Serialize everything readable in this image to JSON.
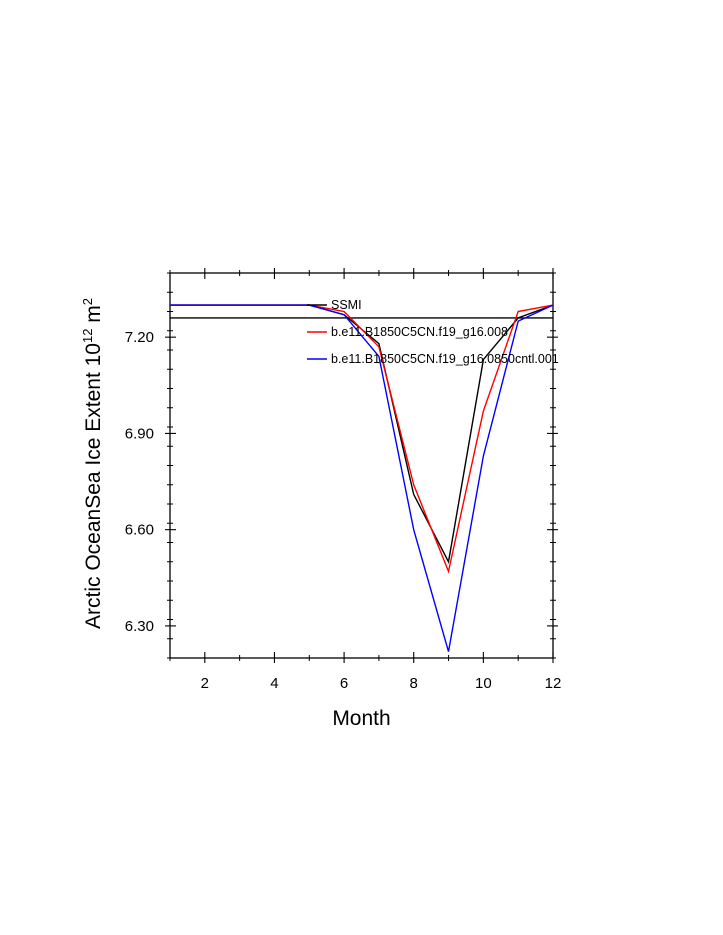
{
  "chart_data": {
    "type": "line",
    "xlabel": "Month",
    "ylabel": {
      "main": "Arctic OceanSea Ice Extent 10",
      "exponent": "12",
      "unit": "m",
      "unit_exponent": "2"
    },
    "xlim": [
      1,
      12
    ],
    "ylim": [
      6.2,
      7.4
    ],
    "x_ticks": [
      2,
      4,
      6,
      8,
      10,
      12
    ],
    "x_tick_labels": [
      "2",
      "4",
      "6",
      "8",
      "10",
      "12"
    ],
    "y_ticks": [
      6.3,
      6.6,
      6.9,
      7.2
    ],
    "y_tick_labels": [
      "6.30",
      "6.60",
      "6.90",
      "7.20"
    ],
    "grid": false,
    "legend_position": "top-right inside",
    "x": [
      1,
      2,
      3,
      4,
      5,
      6,
      7,
      8,
      9,
      10,
      11,
      12
    ],
    "series": [
      {
        "name": "SSMI",
        "color": "#000000",
        "values": [
          7.3,
          7.3,
          7.3,
          7.3,
          7.3,
          7.27,
          7.18,
          6.71,
          6.5,
          7.13,
          7.26,
          7.3
        ]
      },
      {
        "name": "b.e11.B1850C5CN.f19_g16.008",
        "color": "#ff0000",
        "values": [
          7.3,
          7.3,
          7.3,
          7.3,
          7.3,
          7.28,
          7.17,
          6.74,
          6.47,
          6.97,
          7.28,
          7.3
        ]
      },
      {
        "name": "b.e11.B1850C5CN.f19_g16.0850cntl.001",
        "color": "#0000ff",
        "values": [
          7.3,
          7.3,
          7.3,
          7.3,
          7.3,
          7.27,
          7.14,
          6.6,
          6.22,
          6.83,
          7.25,
          7.3
        ]
      }
    ],
    "reference_line": {
      "value": 7.26,
      "color": "#000000"
    }
  }
}
